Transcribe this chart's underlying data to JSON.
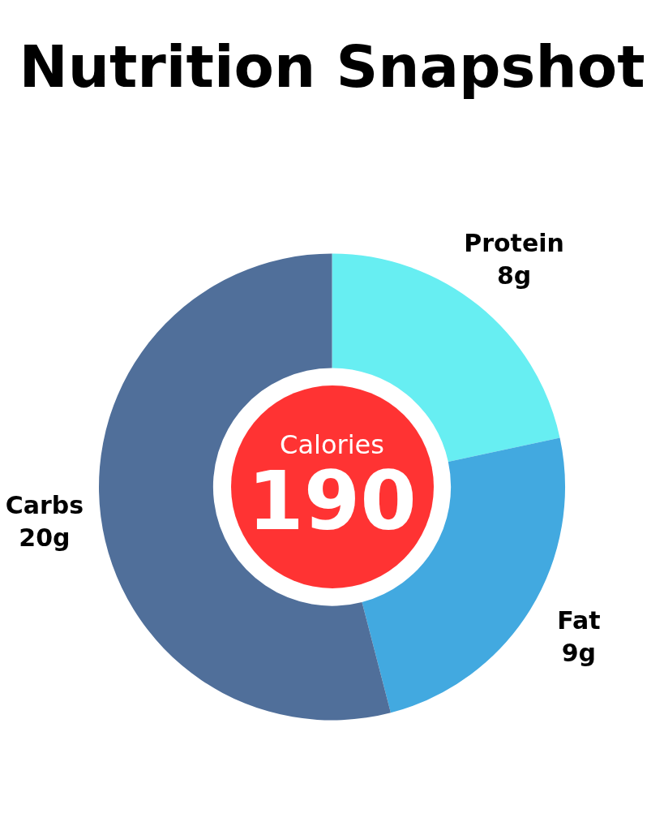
{
  "chart_data": {
    "type": "donut",
    "title": "Nutrition Snapshot",
    "categories": [
      "Protein",
      "Fat",
      "Carbs"
    ],
    "values": [
      8,
      9,
      20
    ],
    "value_labels": [
      "8g",
      "9g",
      "20g"
    ],
    "colors": [
      "#67eef2",
      "#42a9e0",
      "#506f9a"
    ],
    "annotations": [
      "Calories",
      "190"
    ],
    "legend": false
  }
}
